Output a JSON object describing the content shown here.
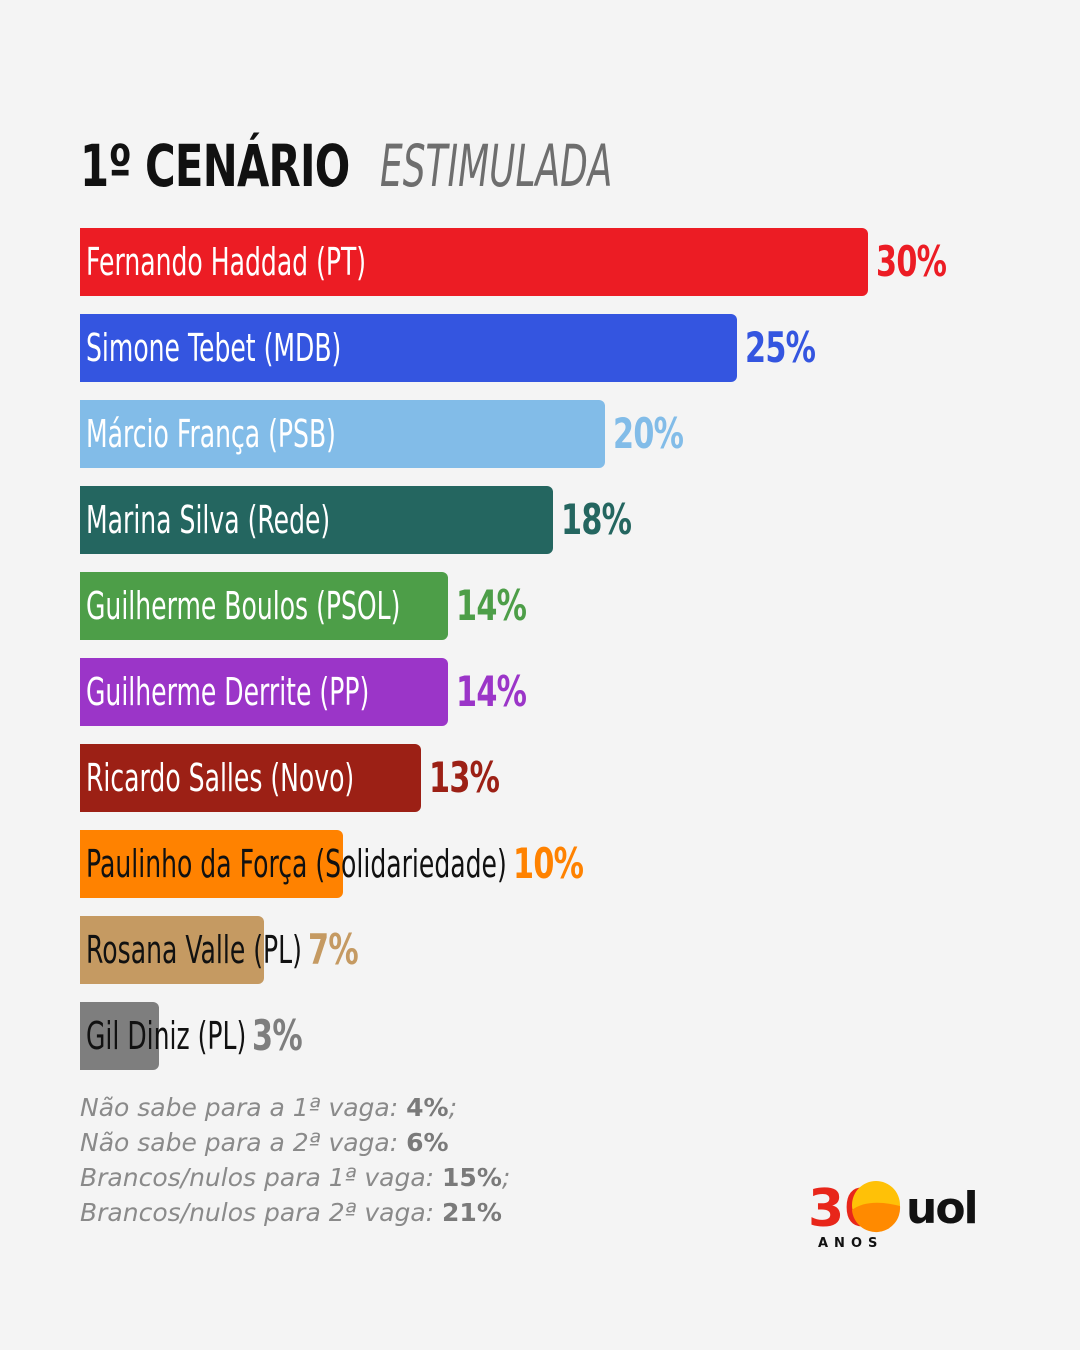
{
  "header": {
    "title": "1º CENÁRIO",
    "subtitle": "ESTIMULADA"
  },
  "chart_data": {
    "type": "bar",
    "orientation": "horizontal",
    "title": "1º CENÁRIO ESTIMULADA",
    "categories": [
      "Fernando Haddad (PT)",
      "Simone Tebet (MDB)",
      "Márcio França (PSB)",
      "Marina Silva (Rede)",
      "Guilherme Boulos (PSOL)",
      "Guilherme Derrite (PP)",
      "Ricardo Salles (Novo)",
      "Paulinho da Força (Solidariedade)",
      "Rosana Valle (PL)",
      "Gil Diniz (PL)"
    ],
    "values": [
      30,
      25,
      20,
      18,
      14,
      14,
      13,
      10,
      7,
      3
    ],
    "value_labels": [
      "30%",
      "25%",
      "20%",
      "18%",
      "14%",
      "14%",
      "13%",
      "10%",
      "7%",
      "3%"
    ],
    "colors": [
      "#ec1c24",
      "#3455e0",
      "#82bce8",
      "#246660",
      "#4d9e48",
      "#9b35c8",
      "#9c2015",
      "#ff8200",
      "#c59a62",
      "#7e7e7e"
    ],
    "label_colors": [
      "#ffffff",
      "#ffffff",
      "#ffffff",
      "#ffffff",
      "#ffffff",
      "#ffffff",
      "#ffffff",
      "#111111",
      "#111111",
      "#111111"
    ],
    "pct_colors": [
      "#ec1c24",
      "#3455e0",
      "#82bce8",
      "#246660",
      "#4d9e48",
      "#9b35c8",
      "#9c2015",
      "#ff8200",
      "#c59a62",
      "#7e7e7e"
    ],
    "xlim": [
      0,
      30
    ]
  },
  "notes": [
    {
      "text": "Não sabe para a 1ª vaga: ",
      "value": "4%",
      "suffix": ";"
    },
    {
      "text": "Não sabe para a 2ª vaga: ",
      "value": "6%",
      "suffix": ""
    },
    {
      "text": "Brancos/nulos para 1ª vaga: ",
      "value": "15%",
      "suffix": ";"
    },
    {
      "text": "Brancos/nulos para 2ª vaga: ",
      "value": "21%",
      "suffix": ""
    }
  ],
  "logo": {
    "number": "30",
    "brand": "uol",
    "tagline": "ANOS",
    "colors": {
      "red": "#e8261a",
      "yellow": "#ffc107",
      "orange": "#ff8a00",
      "black": "#111111"
    }
  }
}
